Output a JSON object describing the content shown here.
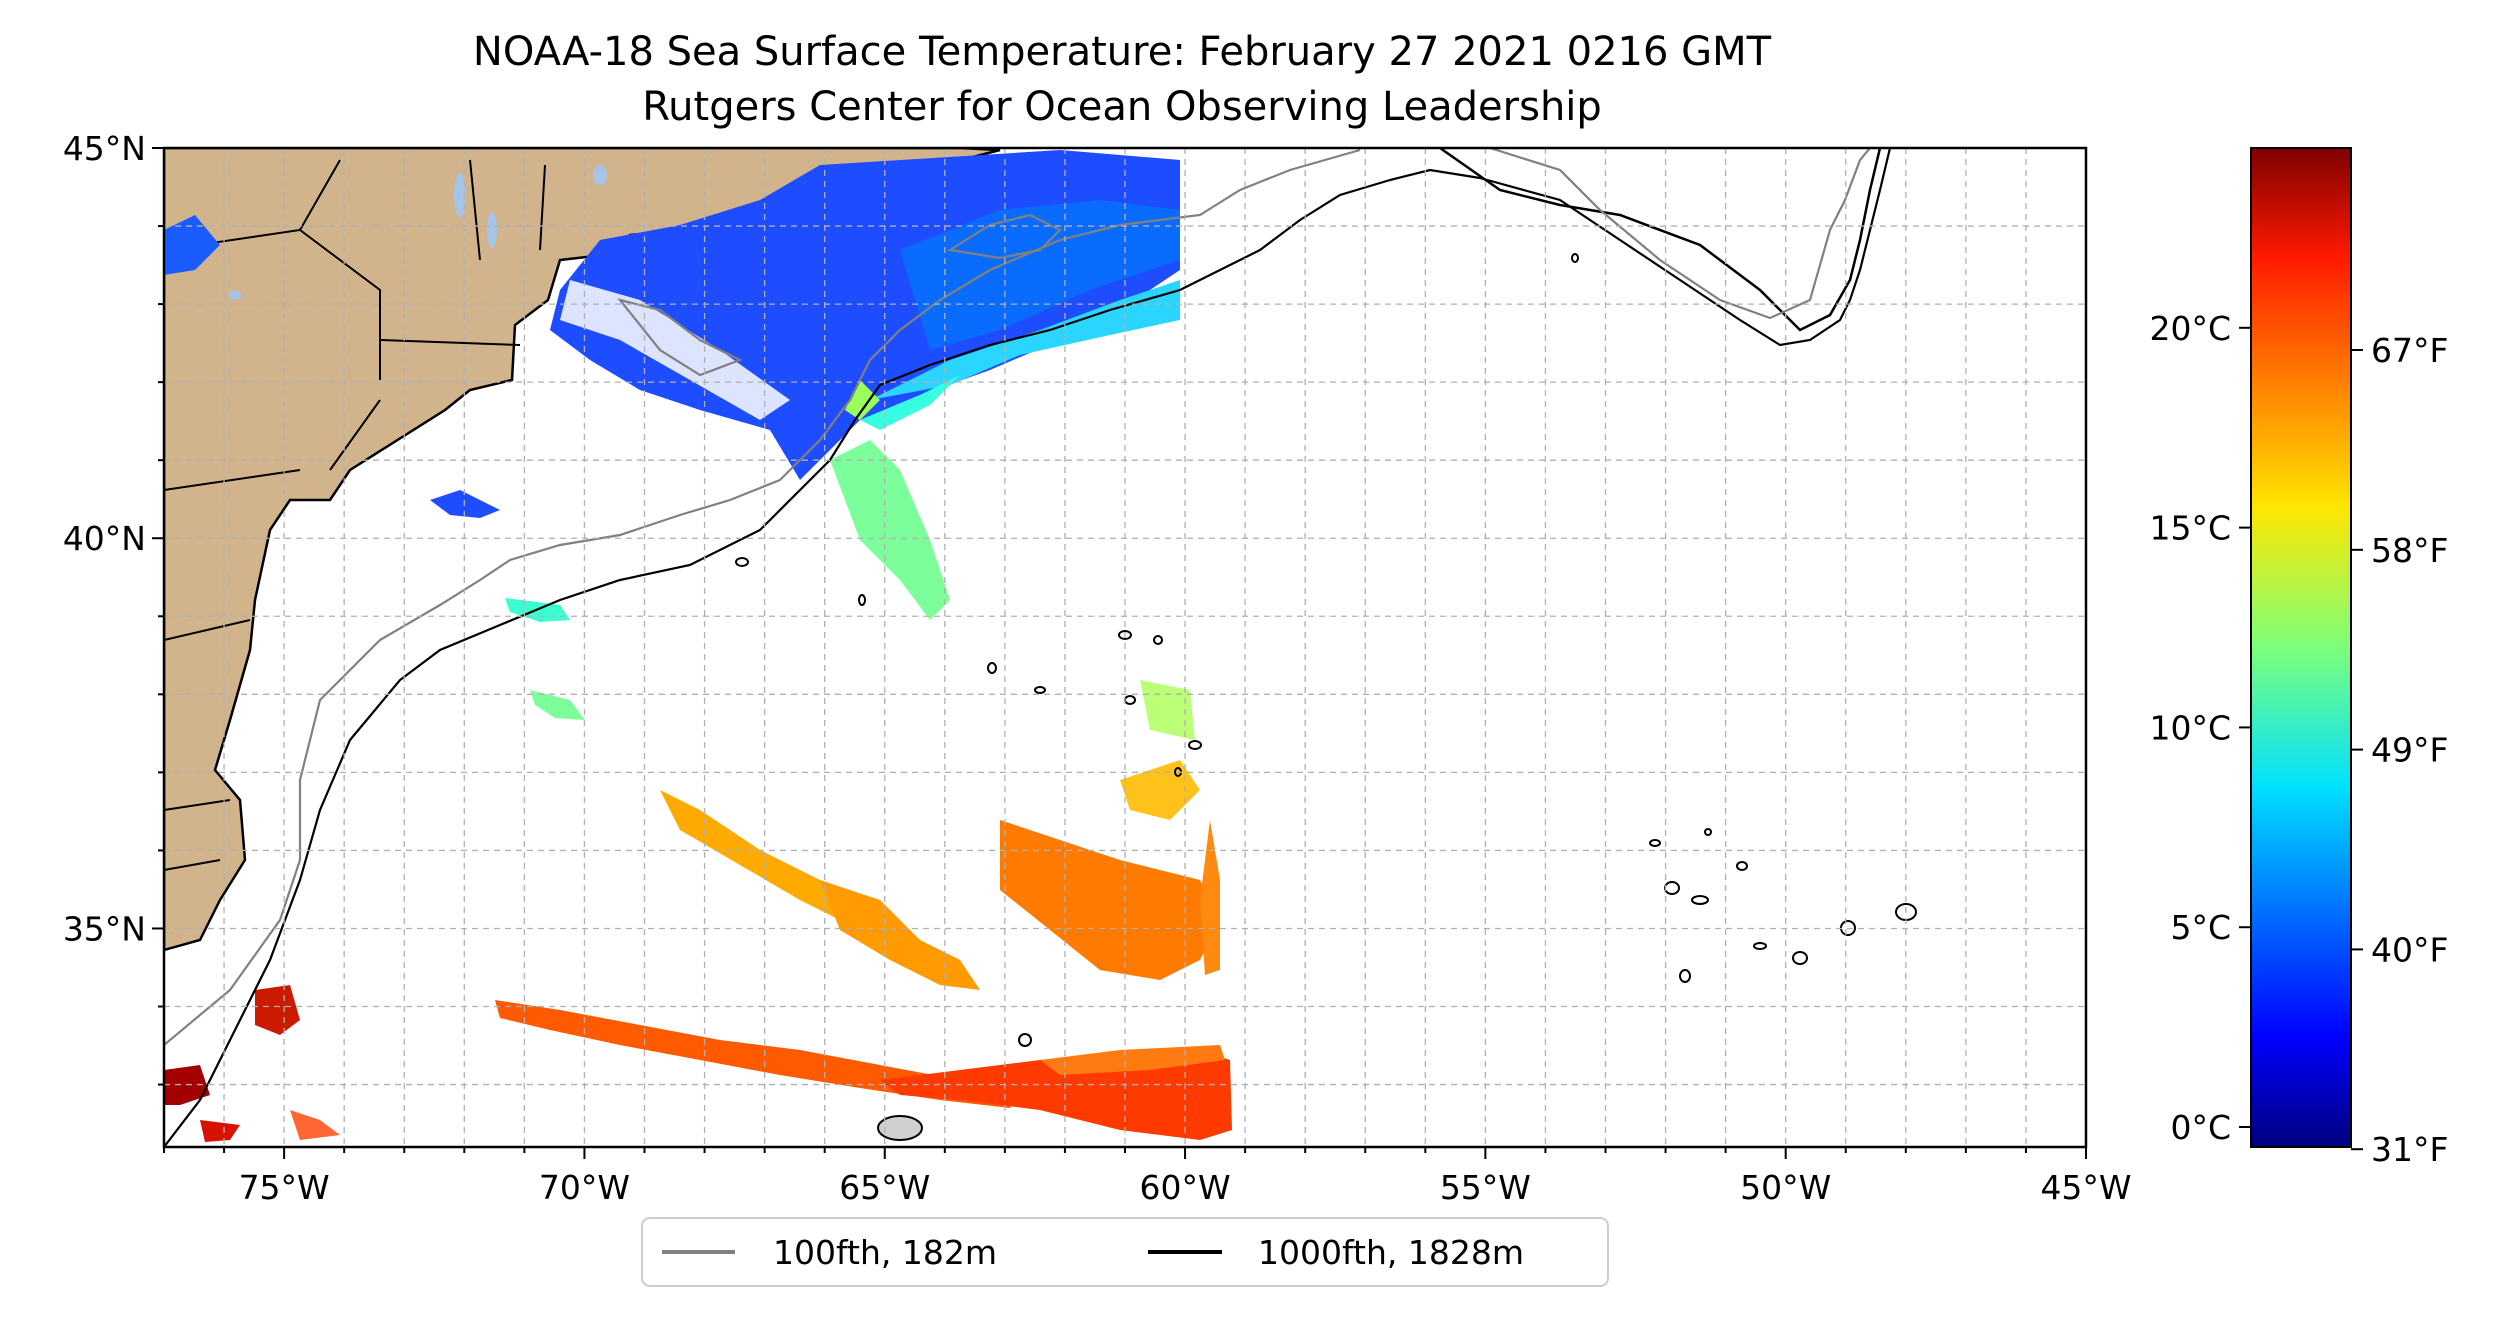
{
  "map": {
    "title": "NOAA-18 Sea Surface Temperature: February 27 2021 0216 GMT",
    "subtitle": "Rutgers Center for Ocean Observing Leadership",
    "extent": {
      "lon": [
        -77,
        -45
      ],
      "lat": [
        32.2,
        45
      ]
    },
    "grid": true,
    "lon_ticks": [
      {
        "value": -75,
        "label": "75°W"
      },
      {
        "value": -70,
        "label": "70°W"
      },
      {
        "value": -65,
        "label": "65°W"
      },
      {
        "value": -60,
        "label": "60°W"
      },
      {
        "value": -55,
        "label": "55°W"
      },
      {
        "value": -50,
        "label": "50°W"
      },
      {
        "value": -45,
        "label": "45°W"
      }
    ],
    "lat_ticks": [
      {
        "value": 45,
        "label": "45°N"
      },
      {
        "value": 40,
        "label": "40°N"
      },
      {
        "value": 35,
        "label": "35°N"
      }
    ],
    "land_color": "#d2b48c",
    "lake_color": "#a6c4e8",
    "legend": {
      "placement": "bottom-center",
      "entries": [
        {
          "label": "100fth, 182m",
          "color": "#808080"
        },
        {
          "label": "1000fth, 1828m",
          "color": "#000000"
        }
      ]
    }
  },
  "colorbar": {
    "colormap": "jet",
    "range_c": [
      -0.5,
      24.5
    ],
    "celsius_ticks": [
      {
        "value": 0,
        "label": "0°C"
      },
      {
        "value": 5,
        "label": "5°C"
      },
      {
        "value": 10,
        "label": "10°C"
      },
      {
        "value": 15,
        "label": "15°C"
      },
      {
        "value": 20,
        "label": "20°C"
      }
    ],
    "fahrenheit_ticks": [
      {
        "value": 31,
        "label": "31°F"
      },
      {
        "value": 40,
        "label": "40°F"
      },
      {
        "value": 49,
        "label": "49°F"
      },
      {
        "value": 58,
        "label": "58°F"
      },
      {
        "value": 67,
        "label": "67°F"
      }
    ]
  }
}
